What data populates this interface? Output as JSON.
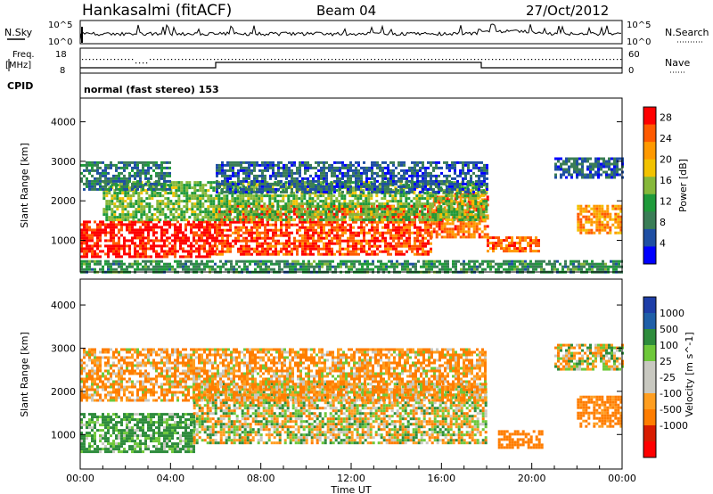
{
  "header": {
    "station": "Hankasalmi (fitACF)",
    "beam": "Beam 04",
    "date": "27/Oct/2012"
  },
  "top_panels": {
    "nsky_label": "N.Sky",
    "nsky_ticks": [
      "10^5",
      "10^0"
    ],
    "nsearch_label": "N.Search",
    "nsearch_ticks": [
      "10^5",
      "10^0"
    ],
    "freq_label_1": "Freq.",
    "freq_label_2": "[MHz]",
    "freq_ticks": [
      "18",
      "8"
    ],
    "nave_label": "Nave",
    "nave_ticks": [
      "60",
      "0"
    ],
    "cpid_label": "CPID",
    "cpid_text": "normal (fast stereo) 153"
  },
  "colors": {
    "power": [
      "#0000ff",
      "#1f4fa3",
      "#3a7d56",
      "#1f9a3a",
      "#86b83a",
      "#f2c200",
      "#ff9900",
      "#ff5a00",
      "#ff0000"
    ],
    "velocity": [
      "#ff0000",
      "#d81c00",
      "#ff7d00",
      "#ff9e20",
      "#c8c8c0",
      "#c8c8c0",
      "#6ec83a",
      "#2e8c3c",
      "#1f5fa8",
      "#1e3ea8"
    ]
  },
  "chart_data": [
    {
      "type": "heatmap",
      "name": "power-panel",
      "ylabel": "Slant Range [km]",
      "yticks": [
        "1000",
        "2000",
        "3000",
        "4000"
      ],
      "ylim": [
        200,
        4600
      ],
      "xlim": [
        "00:00",
        "24:00"
      ],
      "colorbar_label": "Power [dB]",
      "colorbar_ticks": [
        "4",
        "8",
        "12",
        "16",
        "20",
        "24",
        "28"
      ],
      "colorbar_range": [
        0,
        30
      ],
      "regions": [
        {
          "t": [
            0,
            6
          ],
          "r": [
            600,
            1500
          ],
          "level": 28
        },
        {
          "t": [
            6,
            15.5
          ],
          "r": [
            650,
            1900
          ],
          "level": 26
        },
        {
          "t": [
            15.5,
            18
          ],
          "r": [
            1100,
            2200
          ],
          "level": 24
        },
        {
          "t": [
            18,
            20.3
          ],
          "r": [
            700,
            1100
          ],
          "level": 24
        },
        {
          "t": [
            22,
            24
          ],
          "r": [
            1200,
            1900
          ],
          "level": 22
        },
        {
          "t": [
            1,
            18
          ],
          "r": [
            1500,
            2500
          ],
          "level": 14
        },
        {
          "t": [
            0,
            4
          ],
          "r": [
            2300,
            3000
          ],
          "level": 8
        },
        {
          "t": [
            6,
            18
          ],
          "r": [
            2200,
            3000
          ],
          "level": 6
        },
        {
          "t": [
            21,
            24
          ],
          "r": [
            2600,
            3100
          ],
          "level": 6
        },
        {
          "t": [
            0,
            24
          ],
          "r": [
            200,
            500
          ],
          "level": 10
        }
      ]
    },
    {
      "type": "heatmap",
      "name": "velocity-panel",
      "xlabel": "Time UT",
      "ylabel": "Slant Range [km]",
      "yticks": [
        "1000",
        "2000",
        "3000",
        "4000"
      ],
      "ylim": [
        200,
        4600
      ],
      "xticks": [
        "00:00",
        "04:00",
        "08:00",
        "12:00",
        "16:00",
        "20:00",
        "00:00"
      ],
      "colorbar_label": "Velocity [m s^-1]",
      "colorbar_ticks": [
        "1000",
        "500",
        "100",
        "25",
        "-25",
        "-100",
        "-500",
        "-1000"
      ],
      "regions": [
        {
          "t": [
            0,
            5
          ],
          "r": [
            600,
            1500
          ],
          "velocity": 150
        },
        {
          "t": [
            5,
            18
          ],
          "r": [
            800,
            2200
          ],
          "velocity": 0
        },
        {
          "t": [
            18.5,
            20.5
          ],
          "r": [
            700,
            1100
          ],
          "velocity": -300
        },
        {
          "t": [
            22,
            24
          ],
          "r": [
            1200,
            1900
          ],
          "velocity": -200
        },
        {
          "t": [
            0,
            18
          ],
          "r": [
            1800,
            3000
          ],
          "velocity": -100
        },
        {
          "t": [
            21,
            24
          ],
          "r": [
            2500,
            3100
          ],
          "velocity": 0
        }
      ]
    }
  ]
}
